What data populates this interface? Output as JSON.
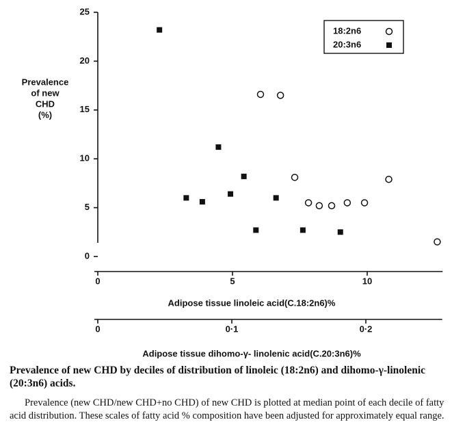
{
  "chart_data": {
    "type": "scatter",
    "ylabel": [
      "Prevalence",
      "of new",
      "CHD",
      "(%)"
    ],
    "xlabel": "Adipose tissue linoleic acid(C.18:2n6)%",
    "x2label": "Adipose tissue dihomo-γ- linolenic acid(C.20:3n6)%",
    "xlim": [
      0,
      12.8
    ],
    "xticks": [
      0,
      5,
      10
    ],
    "x2lim": [
      0,
      0.257
    ],
    "x2ticks": [
      0,
      {
        "value": 0.1,
        "label": "0·1"
      },
      {
        "value": 0.2,
        "label": "0·2"
      }
    ],
    "ylim": [
      0,
      25
    ],
    "yticks": [
      0,
      5,
      10,
      15,
      20,
      25
    ],
    "series": [
      {
        "name": "18:2n6",
        "marker": "circle-open",
        "color": "#111",
        "x": [
          6.04,
          6.78,
          7.31,
          7.82,
          8.22,
          8.68,
          9.26,
          9.9,
          10.8,
          12.6
        ],
        "values": [
          16.6,
          16.5,
          8.1,
          5.5,
          5.2,
          5.2,
          5.5,
          5.5,
          7.9,
          1.5
        ]
      },
      {
        "name": "20:3n6",
        "marker": "square",
        "color": "#111",
        "axis": "x2",
        "x": [
          0.046,
          0.066,
          0.078,
          0.09,
          0.099,
          0.109,
          0.118,
          0.133,
          0.153,
          0.181
        ],
        "values": [
          23.2,
          6.0,
          5.6,
          11.2,
          6.4,
          8.2,
          2.7,
          6.0,
          2.7,
          2.5
        ]
      }
    ]
  },
  "caption": {
    "title": "Prevalence of new CHD by deciles of distribution of linoleic (18:2n6) and dihomo-γ-linolenic (20:3n6) acids.",
    "text": "Prevalence (new CHD/new CHD+no CHD) of new CHD is plotted at median point of each decile of fatty acid distribution. These scales of fatty acid % composition have been adjusted for approximately equal range."
  }
}
